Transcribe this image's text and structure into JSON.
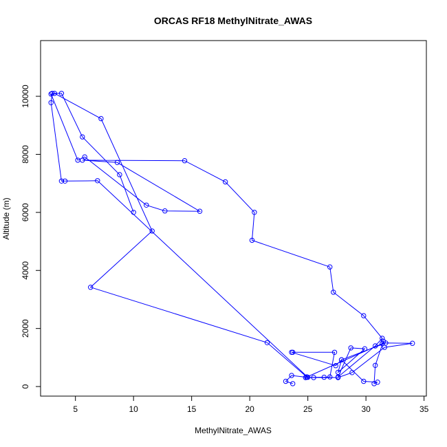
{
  "chart_data": {
    "type": "line",
    "title": "ORCAS RF18 MethylNitrate_AWAS",
    "xlabel": "MethylNitrate_AWAS",
    "ylabel": "Altitude (m)",
    "xlim": [
      2.0,
      35.2
    ],
    "ylim": [
      -330,
      11920
    ],
    "xticks": [
      5,
      10,
      15,
      20,
      25,
      30,
      35
    ],
    "yticks": [
      0,
      2000,
      4000,
      6000,
      8000,
      10000
    ],
    "grid": false,
    "legend": "none",
    "color": "#0000ff",
    "markers": "open-circle",
    "series": [
      {
        "x": [
          23.7,
          23.1,
          23.6,
          24.9,
          27.6,
          28.8,
          31.6,
          34.0,
          31.7,
          27.9,
          27.4,
          23.6,
          23.7,
          27.3,
          26.9,
          26.4,
          25.5,
          24.8,
          31.4,
          31.5,
          30.8,
          30.7,
          31.0,
          29.8,
          27.9,
          27.6,
          29.9,
          28.7,
          27.6,
          30.8,
          31.4,
          29.8,
          27.2,
          26.9,
          20.2,
          20.4,
          17.9,
          14.4,
          5.6,
          8.6,
          15.7,
          12.7,
          11.1,
          5.8,
          5.2,
          2.9,
          3.2,
          7.2,
          11.6,
          6.3,
          21.5,
          24.9,
          25.0,
          6.9,
          4.1,
          3.8,
          2.9,
          3.0,
          3.8,
          5.6,
          8.8,
          10.0
        ],
        "y": [
          100,
          180,
          380,
          320,
          310,
          480,
          1350,
          1490,
          1500,
          920,
          720,
          1180,
          1180,
          1180,
          330,
          320,
          310,
          310,
          1480,
          1560,
          730,
          100,
          150,
          180,
          920,
          490,
          1300,
          1330,
          330,
          1400,
          1660,
          2440,
          3250,
          4120,
          5040,
          6000,
          7050,
          7780,
          7800,
          7720,
          6040,
          6050,
          6250,
          7910,
          7800,
          10080,
          10100,
          9230,
          5360,
          3420,
          1510,
          330,
          320,
          7090,
          7080,
          7080,
          9780,
          10100,
          10100,
          8600,
          7300,
          6000
        ]
      }
    ]
  }
}
